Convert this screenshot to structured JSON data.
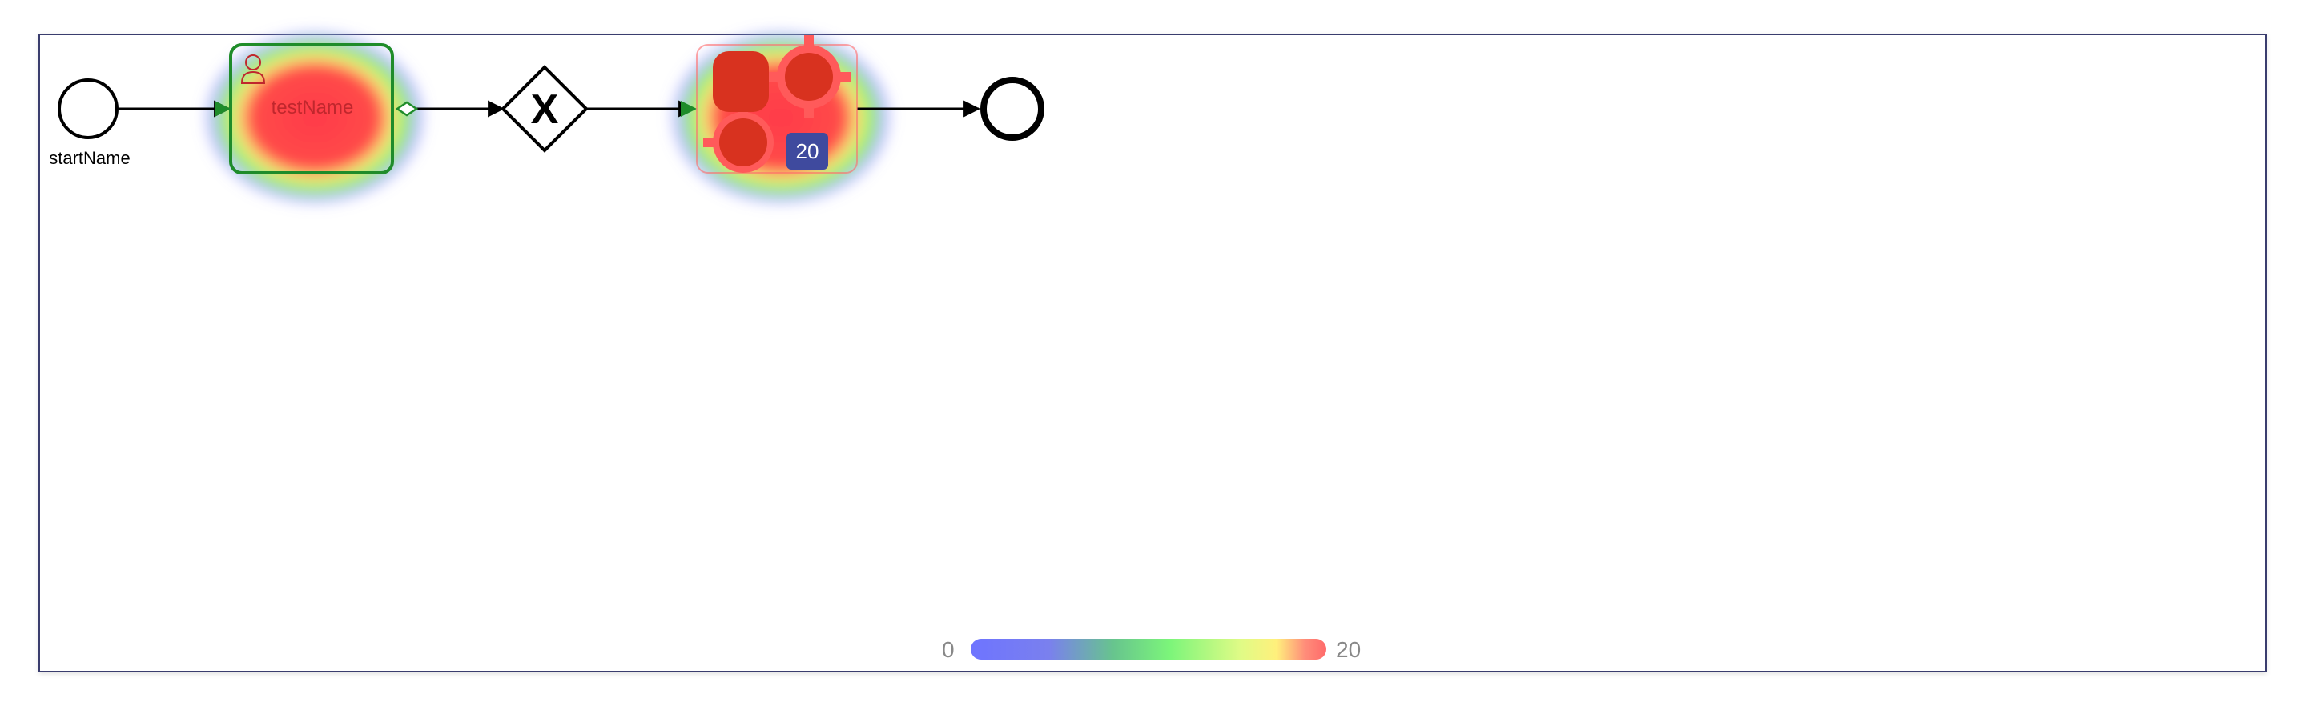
{
  "diagram": {
    "start_event": {
      "label": "startName"
    },
    "user_task": {
      "label": "testName",
      "icon": "user-icon"
    },
    "gateway": {
      "type": "exclusive",
      "marker": "X"
    },
    "service_task": {
      "icon": "gear-icon",
      "count_badge": "20"
    },
    "end_event": {
      "label": ""
    }
  },
  "heatmap_legend": {
    "min": "0",
    "max": "20"
  },
  "colors": {
    "frame": "#3a3d6e",
    "heat_hot": "#ff3b48",
    "heat_mid": "#8ff36a",
    "heat_cold": "#8a8cff",
    "badge": "#3f4a9e",
    "task_border": "#1f8c2a"
  }
}
